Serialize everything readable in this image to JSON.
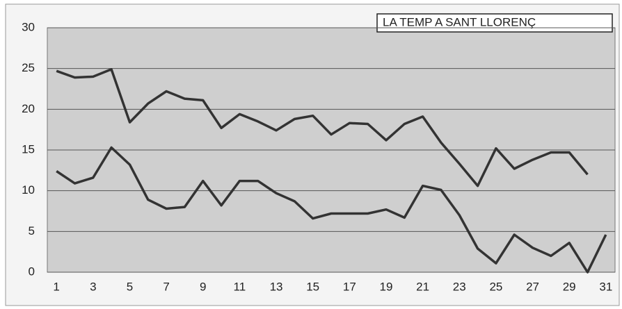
{
  "chart_data": {
    "type": "line",
    "title": "LA TEMP A SANT LLORENÇ",
    "categories": [
      1,
      null,
      3,
      null,
      5,
      null,
      7,
      null,
      9,
      null,
      11,
      null,
      13,
      null,
      15,
      null,
      17,
      null,
      19,
      null,
      21,
      null,
      23,
      null,
      25,
      null,
      27,
      null,
      29,
      null,
      31
    ],
    "series": [
      {
        "color": "#333333",
        "values": [
          24.7,
          23.9,
          24.0,
          24.9,
          18.4,
          20.7,
          22.2,
          21.3,
          21.1,
          17.7,
          19.4,
          18.5,
          17.4,
          18.8,
          19.2,
          16.9,
          18.3,
          18.2,
          16.2,
          18.2,
          19.1,
          15.9,
          13.3,
          10.6,
          15.2,
          12.7,
          13.8,
          14.7,
          14.7,
          12.0,
          null
        ]
      },
      {
        "color": "#333333",
        "values": [
          12.4,
          10.9,
          11.6,
          15.3,
          13.2,
          8.9,
          7.8,
          8.0,
          11.2,
          8.2,
          11.2,
          11.2,
          9.7,
          8.7,
          6.6,
          7.2,
          7.2,
          7.2,
          7.7,
          6.7,
          10.6,
          10.1,
          7.0,
          2.9,
          1.1,
          4.6,
          3.0,
          2.0,
          3.6,
          0.0,
          4.6
        ]
      }
    ],
    "ylim": [
      0,
      30
    ],
    "yticks": [
      0,
      5,
      10,
      15,
      20,
      25,
      30
    ],
    "grid": true
  }
}
